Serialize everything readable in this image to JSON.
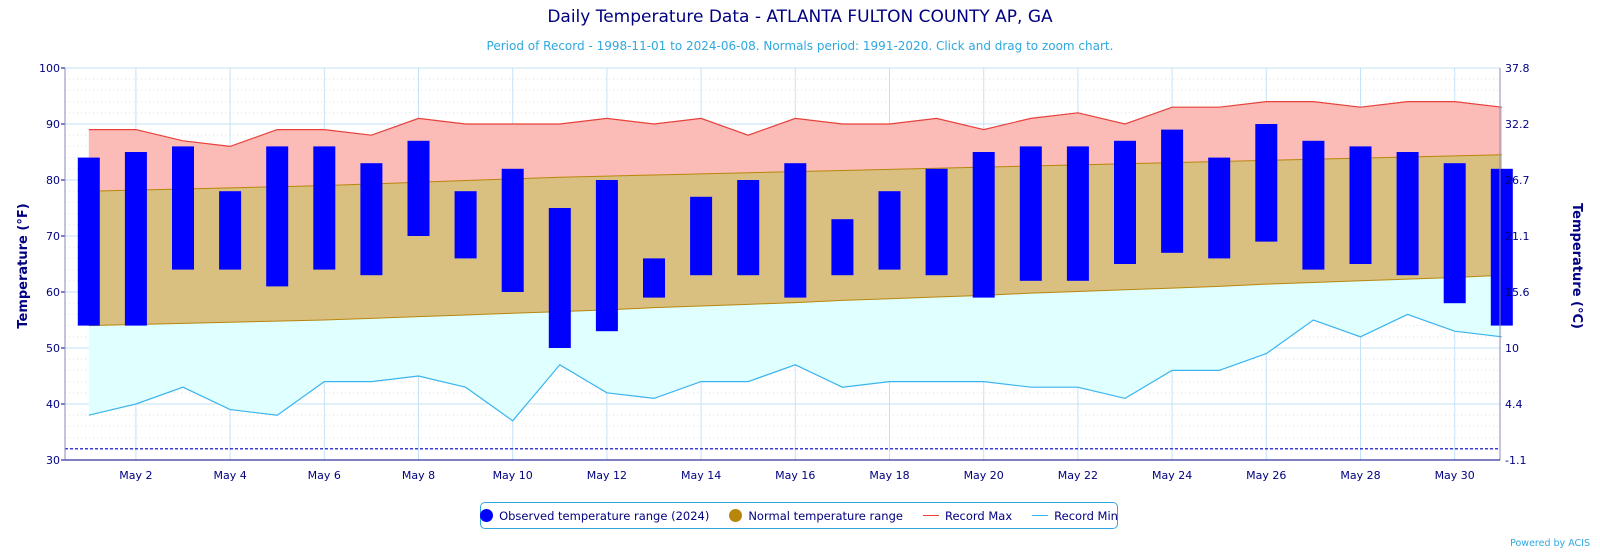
{
  "title": "Daily Temperature Data - ATLANTA FULTON COUNTY AP, GA",
  "subtitle": "Period of Record - 1998-11-01 to 2024-06-08. Normals period: 1991-2020. Click and drag to zoom chart.",
  "credit": "Powered by ACIS",
  "legend": {
    "observed": "Observed temperature range (2024)",
    "normal": "Normal temperature range",
    "record_max": "Record Max",
    "record_min": "Record Min"
  },
  "colors": {
    "observed": "#0000ff",
    "normal_fill": "#d9bf80",
    "normal_legend": "#b8860b",
    "record_max_line": "#e8403a",
    "record_max_fill": "#fbbcb7",
    "record_min_line": "#3ab4ee",
    "record_min_fill": "#e0ffff",
    "text": "#000080"
  },
  "chart_data": {
    "type": "bar",
    "xlabel": "",
    "ylabel": "Temperature (°F)",
    "ylabel_right": "Temperature (°C)",
    "ylim": [
      30,
      100
    ],
    "yticks": [
      30,
      40,
      50,
      60,
      70,
      80,
      90,
      100
    ],
    "yticks_right": [
      "-1.1",
      "4.4",
      "10",
      "15.6",
      "21.1",
      "26.7",
      "32.2",
      "37.8"
    ],
    "xtick_labels": [
      "May 2",
      "May 4",
      "May 6",
      "May 8",
      "May 10",
      "May 12",
      "May 14",
      "May 16",
      "May 18",
      "May 20",
      "May 22",
      "May 24",
      "May 26",
      "May 28",
      "May 30"
    ],
    "dashed_line_value": 32,
    "days": [
      1,
      2,
      3,
      4,
      5,
      6,
      7,
      8,
      9,
      10,
      11,
      12,
      13,
      14,
      15,
      16,
      17,
      18,
      19,
      20,
      21,
      22,
      23,
      24,
      25,
      26,
      27,
      28,
      29,
      30,
      31
    ],
    "series": [
      {
        "name": "Observed temperature range (2024)",
        "low": [
          54,
          54,
          64,
          64,
          61,
          64,
          63,
          70,
          66,
          60,
          50,
          53,
          59,
          63,
          63,
          59,
          63,
          64,
          63,
          59,
          62,
          62,
          65,
          67,
          66,
          69,
          64,
          65,
          63,
          58,
          54
        ],
        "high": [
          84,
          85,
          86,
          78,
          86,
          86,
          83,
          87,
          78,
          82,
          75,
          80,
          66,
          77,
          80,
          83,
          73,
          78,
          82,
          85,
          86,
          86,
          87,
          89,
          84,
          90,
          87,
          86,
          85,
          83,
          82
        ]
      },
      {
        "name": "Normal temperature range",
        "low": [
          54,
          54.2,
          54.4,
          54.6,
          54.8,
          55,
          55.3,
          55.6,
          55.9,
          56.2,
          56.5,
          56.8,
          57.2,
          57.5,
          57.8,
          58.1,
          58.5,
          58.8,
          59.1,
          59.4,
          59.8,
          60.1,
          60.4,
          60.7,
          61,
          61.4,
          61.7,
          62,
          62.3,
          62.6,
          63
        ],
        "high": [
          78,
          78.2,
          78.4,
          78.6,
          78.8,
          79,
          79.3,
          79.6,
          79.9,
          80.2,
          80.5,
          80.7,
          80.9,
          81.1,
          81.3,
          81.5,
          81.7,
          81.9,
          82.1,
          82.3,
          82.5,
          82.7,
          82.9,
          83.1,
          83.3,
          83.5,
          83.7,
          83.9,
          84.1,
          84.3,
          84.5
        ]
      },
      {
        "name": "Record Max",
        "values": [
          89,
          89,
          87,
          86,
          89,
          89,
          88,
          91,
          90,
          90,
          90,
          91,
          90,
          91,
          88,
          91,
          90,
          90,
          91,
          89,
          91,
          92,
          90,
          93,
          93,
          94,
          94,
          93,
          94,
          94,
          93
        ]
      },
      {
        "name": "Record Min",
        "values": [
          38,
          40,
          43,
          39,
          38,
          44,
          44,
          45,
          43,
          37,
          47,
          42,
          41,
          44,
          44,
          47,
          43,
          44,
          44,
          44,
          43,
          43,
          41,
          46,
          46,
          49,
          55,
          52,
          56,
          53,
          52
        ]
      }
    ]
  }
}
